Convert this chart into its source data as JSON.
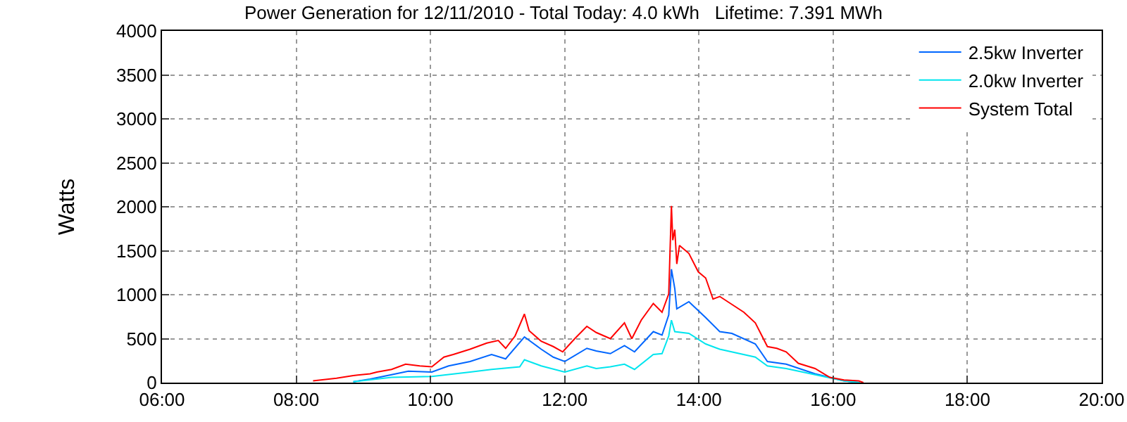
{
  "chart_data": {
    "type": "line",
    "title": "Power Generation for 12/11/2010 - Total Today: 4.0 kWh   Lifetime: 7.391 MWh",
    "ylabel": "Watts",
    "xlim": [
      6,
      20
    ],
    "xticks": [
      {
        "value": 6,
        "label": "06:00"
      },
      {
        "value": 8,
        "label": "08:00"
      },
      {
        "value": 10,
        "label": "10:00"
      },
      {
        "value": 12,
        "label": "12:00"
      },
      {
        "value": 14,
        "label": "14:00"
      },
      {
        "value": 16,
        "label": "16:00"
      },
      {
        "value": 18,
        "label": "18:00"
      },
      {
        "value": 20,
        "label": "20:00"
      }
    ],
    "ylim": [
      0,
      4000
    ],
    "yticks": [
      0,
      500,
      1000,
      1500,
      2000,
      2500,
      3000,
      3500,
      4000
    ],
    "grid": true,
    "legend": "top right",
    "line_style": "solid",
    "series": [
      {
        "name": "2.5kw Inverter",
        "color": "#0066ff",
        "x": [
          8.85,
          9.1,
          9.42,
          9.67,
          10.02,
          10.27,
          10.59,
          10.91,
          11.12,
          11.4,
          11.65,
          11.83,
          12.0,
          12.33,
          12.47,
          12.68,
          12.89,
          13.04,
          13.32,
          13.45,
          13.55,
          13.59,
          13.64,
          13.67,
          13.85,
          14.1,
          14.31,
          14.49,
          14.84,
          15.02,
          15.3,
          15.73,
          16.16,
          16.4
        ],
        "values": [
          10,
          40,
          90,
          130,
          120,
          190,
          240,
          320,
          270,
          520,
          380,
          290,
          240,
          390,
          360,
          330,
          420,
          350,
          580,
          540,
          770,
          1290,
          1070,
          840,
          920,
          740,
          580,
          560,
          440,
          240,
          210,
          100,
          20,
          0
        ]
      },
      {
        "name": "2.0kw Inverter",
        "color": "#00e5ee",
        "x": [
          8.85,
          9.42,
          10.02,
          10.59,
          10.91,
          11.33,
          11.4,
          11.65,
          12.0,
          12.33,
          12.47,
          12.68,
          12.89,
          13.04,
          13.32,
          13.45,
          13.55,
          13.59,
          13.64,
          13.85,
          14.1,
          14.31,
          14.84,
          15.02,
          15.3,
          15.73,
          16.16,
          16.4
        ],
        "values": [
          10,
          60,
          70,
          120,
          150,
          180,
          260,
          190,
          120,
          190,
          160,
          180,
          210,
          150,
          320,
          330,
          530,
          710,
          580,
          560,
          440,
          380,
          290,
          190,
          160,
          90,
          20,
          0
        ]
      },
      {
        "name": "System Total",
        "color": "#ff0000",
        "x": [
          8.25,
          8.6,
          8.85,
          9.1,
          9.2,
          9.42,
          9.63,
          9.84,
          10.02,
          10.2,
          10.34,
          10.59,
          10.84,
          11.01,
          11.12,
          11.26,
          11.4,
          11.47,
          11.65,
          11.83,
          11.97,
          12.15,
          12.33,
          12.47,
          12.68,
          12.89,
          13.0,
          13.14,
          13.32,
          13.45,
          13.55,
          13.59,
          13.61,
          13.64,
          13.67,
          13.71,
          13.85,
          13.99,
          14.1,
          14.21,
          14.31,
          14.49,
          14.67,
          14.84,
          15.02,
          15.16,
          15.3,
          15.48,
          15.73,
          15.95,
          16.16,
          16.38,
          16.45
        ],
        "values": [
          20,
          50,
          80,
          100,
          120,
          150,
          210,
          190,
          180,
          290,
          320,
          380,
          450,
          480,
          390,
          530,
          780,
          590,
          470,
          410,
          350,
          500,
          640,
          570,
          500,
          680,
          500,
          710,
          900,
          800,
          1010,
          2010,
          1620,
          1740,
          1350,
          1560,
          1470,
          1260,
          1190,
          950,
          980,
          890,
          800,
          680,
          410,
          390,
          350,
          220,
          160,
          60,
          30,
          20,
          0
        ]
      }
    ]
  }
}
